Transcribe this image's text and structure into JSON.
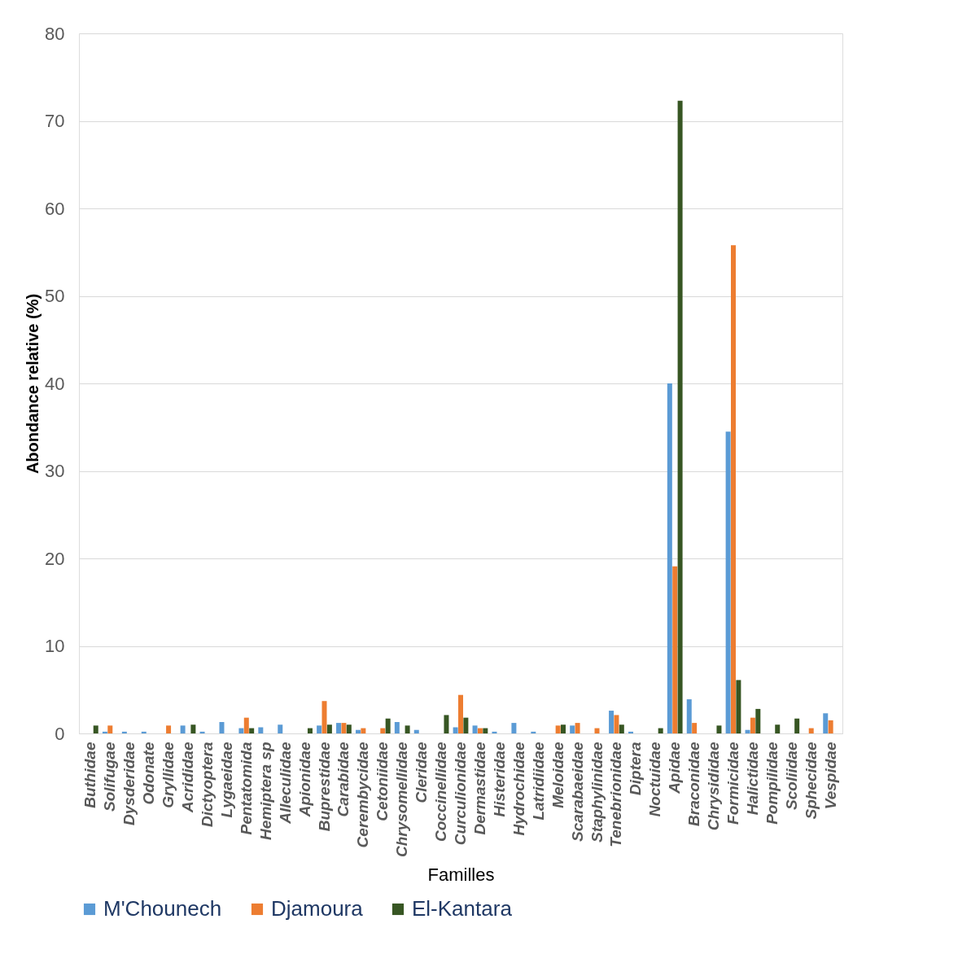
{
  "chart_data": {
    "type": "bar",
    "xlabel": "Familles",
    "ylabel": "Abondance relative (%)",
    "categories": [
      "Buthidae",
      "Solifugae",
      "Dysderidae",
      "Odonate",
      "Gryllidae",
      "Acrididae",
      "Dictyoptera",
      "Lygaeidae",
      "Pentatomida",
      "Hemiptera sp",
      "Alleculidae",
      "Apionidae",
      "Buprestidae",
      "Carabidae",
      "Cerembycidae",
      "Cetoniidae",
      "Chrysomellidae",
      "Cleridae",
      "Coccinellidae",
      "Curculionidae",
      "Dermastidae",
      "Histeridae",
      "Hydrochidae",
      "Latridiidae",
      "Meloidae",
      "Scarabaeidae",
      "Staphylinidae",
      "Tenebrionidae",
      "Diptera",
      "Noctuidae",
      "Apidae",
      "Braconidae",
      "Chrysididae",
      "Formicidae",
      "Halictidae",
      "Pompilidae",
      "Scoliidae",
      "Sphecidae",
      "Vespidae"
    ],
    "series": [
      {
        "name": "M'Chounech",
        "color": "#5b9bd5",
        "values": [
          0,
          0.2,
          0.2,
          0.2,
          0,
          0.9,
          0.2,
          1.3,
          0.6,
          0.7,
          1.0,
          0,
          0.9,
          1.2,
          0.4,
          0,
          1.3,
          0.4,
          0,
          0.7,
          0.9,
          0.2,
          1.2,
          0.2,
          0,
          0.9,
          0,
          2.6,
          0.2,
          0,
          40,
          3.9,
          0,
          34.5,
          0.4,
          0,
          0,
          0,
          2.3
        ]
      },
      {
        "name": "Djamoura",
        "color": "#ed7d31",
        "values": [
          0,
          0.9,
          0,
          0,
          0.9,
          0,
          0,
          0,
          1.8,
          0,
          0,
          0,
          3.7,
          1.2,
          0.6,
          0.6,
          0,
          0,
          0,
          4.4,
          0.6,
          0,
          0,
          0,
          0.9,
          1.2,
          0.6,
          2.1,
          0,
          0,
          19.1,
          1.2,
          0,
          55.8,
          1.8,
          0,
          0,
          0.6,
          1.5
        ]
      },
      {
        "name": "El-Kantara",
        "color": "#375623",
        "values": [
          0.9,
          0,
          0,
          0,
          0,
          1.0,
          0,
          0,
          0.6,
          0,
          0,
          0.6,
          1.0,
          1.0,
          0,
          1.7,
          0.9,
          0,
          2.1,
          1.8,
          0.6,
          0,
          0,
          0,
          1.0,
          0,
          0,
          1.0,
          0,
          0.6,
          72.3,
          0,
          0.9,
          6.1,
          2.8,
          1.0,
          1.7,
          0,
          0
        ]
      }
    ],
    "ylim": [
      0,
      80
    ],
    "yticks": [
      0,
      10,
      20,
      30,
      40,
      50,
      60,
      70,
      80
    ],
    "grid": "y",
    "legend": "bottom"
  }
}
